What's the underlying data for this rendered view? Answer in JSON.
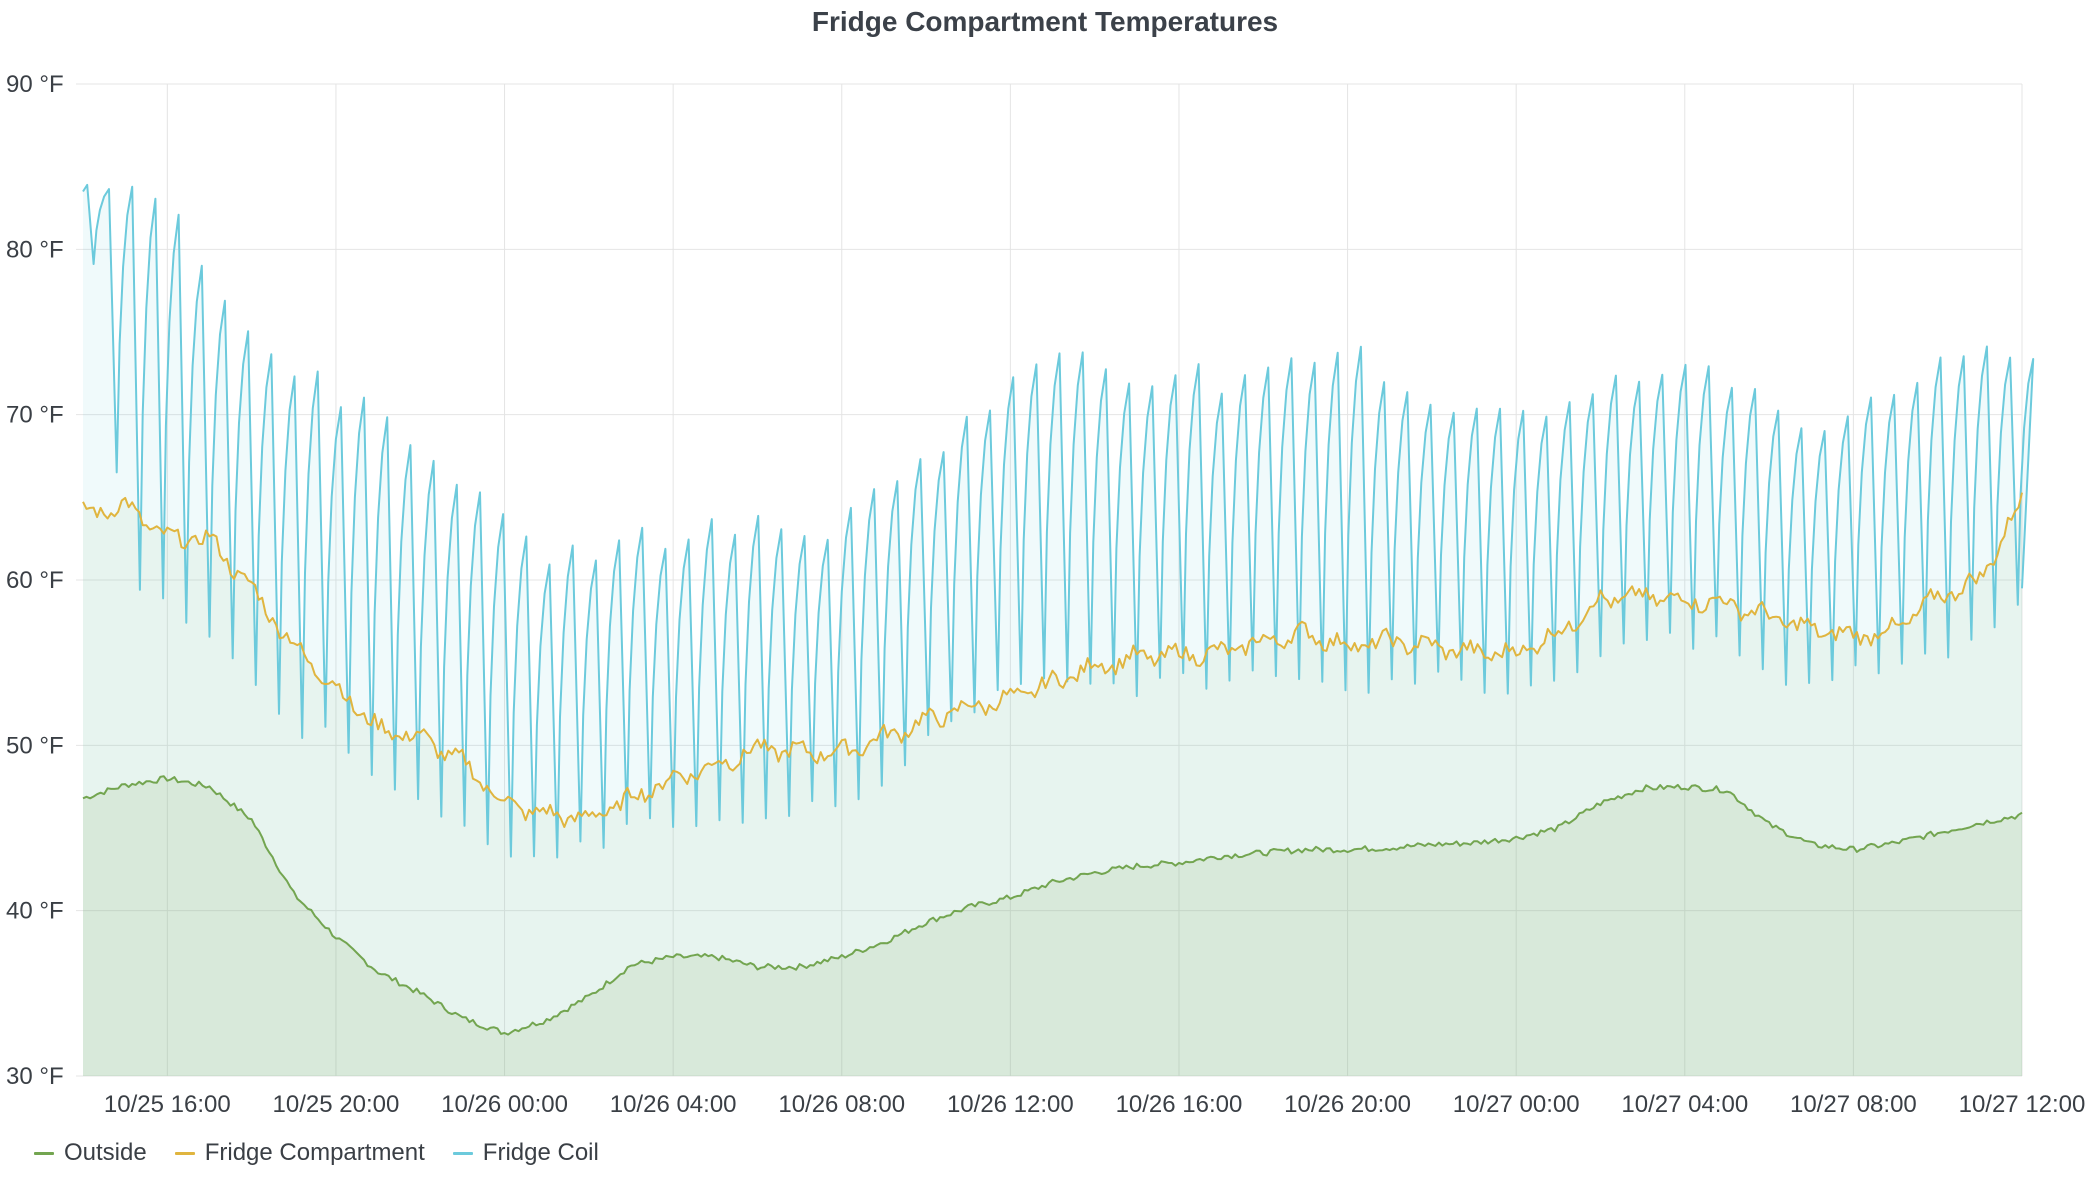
{
  "chart_data": {
    "type": "line",
    "title": "Fridge Compartment Temperatures",
    "x_ticks": [
      "10/25 16:00",
      "10/25 20:00",
      "10/26 00:00",
      "10/26 04:00",
      "10/26 08:00",
      "10/26 12:00",
      "10/26 16:00",
      "10/26 20:00",
      "10/27 00:00",
      "10/27 04:00",
      "10/27 08:00",
      "10/27 12:00"
    ],
    "y_ticks": [
      "30 °F",
      "40 °F",
      "50 °F",
      "60 °F",
      "70 °F",
      "80 °F",
      "90 °F"
    ],
    "xlim": [
      "10/25 13:50",
      "10/27 12:00"
    ],
    "ylim": [
      30,
      90
    ],
    "ylabel": "",
    "xlabel": "",
    "grid": true,
    "legend_position": "bottom-left",
    "series": [
      {
        "name": "Outside",
        "color": "#73a550",
        "fill": true,
        "x": [
          "10/25 14:00",
          "10/25 15:00",
          "10/25 16:00",
          "10/25 17:00",
          "10/25 18:00",
          "10/25 19:00",
          "10/25 20:00",
          "10/25 21:00",
          "10/25 22:00",
          "10/25 23:00",
          "10/26 00:00",
          "10/26 01:00",
          "10/26 02:00",
          "10/26 03:00",
          "10/26 04:00",
          "10/26 05:00",
          "10/26 06:00",
          "10/26 07:00",
          "10/26 08:00",
          "10/26 09:00",
          "10/26 10:00",
          "10/26 11:00",
          "10/26 12:00",
          "10/26 13:00",
          "10/26 14:00",
          "10/26 15:00",
          "10/26 16:00",
          "10/26 17:00",
          "10/26 18:00",
          "10/26 19:00",
          "10/26 20:00",
          "10/26 21:00",
          "10/26 22:00",
          "10/26 23:00",
          "10/27 00:00",
          "10/27 01:00",
          "10/27 02:00",
          "10/27 03:00",
          "10/27 04:00",
          "10/27 05:00",
          "10/27 06:00",
          "10/27 07:00",
          "10/27 08:00",
          "10/27 09:00",
          "10/27 10:00",
          "10/27 11:00",
          "10/27 12:00"
        ],
        "values": [
          46.8,
          47.6,
          48.0,
          47.5,
          45.5,
          41.0,
          38.4,
          36.3,
          35.0,
          33.5,
          32.6,
          33.4,
          34.8,
          36.7,
          37.2,
          37.2,
          36.6,
          36.6,
          37.2,
          38.1,
          39.3,
          40.2,
          40.8,
          41.7,
          42.3,
          42.7,
          42.9,
          43.3,
          43.5,
          43.7,
          43.7,
          43.8,
          44.0,
          44.1,
          44.4,
          45.0,
          46.5,
          47.4,
          47.5,
          47.3,
          45.2,
          44.0,
          43.7,
          44.1,
          44.7,
          45.3,
          45.8
        ]
      },
      {
        "name": "Fridge Compartment",
        "color": "#e0b53f",
        "fill": true,
        "x": [
          "10/25 14:00",
          "10/25 15:00",
          "10/25 16:00",
          "10/25 17:00",
          "10/25 18:00",
          "10/25 19:00",
          "10/25 20:00",
          "10/25 21:00",
          "10/25 22:00",
          "10/25 23:00",
          "10/26 00:00",
          "10/26 01:00",
          "10/26 02:00",
          "10/26 03:00",
          "10/26 04:00",
          "10/26 05:00",
          "10/26 06:00",
          "10/26 07:00",
          "10/26 08:00",
          "10/26 09:00",
          "10/26 10:00",
          "10/26 11:00",
          "10/26 12:00",
          "10/26 13:00",
          "10/26 14:00",
          "10/26 15:00",
          "10/26 16:00",
          "10/26 17:00",
          "10/26 18:00",
          "10/26 19:00",
          "10/26 20:00",
          "10/26 21:00",
          "10/26 22:00",
          "10/26 23:00",
          "10/27 00:00",
          "10/27 01:00",
          "10/27 02:00",
          "10/27 03:00",
          "10/27 04:00",
          "10/27 05:00",
          "10/27 06:00",
          "10/27 07:00",
          "10/27 08:00",
          "10/27 09:00",
          "10/27 10:00",
          "10/27 11:00",
          "10/27 12:00"
        ],
        "values": [
          64.0,
          64.5,
          62.5,
          62.5,
          59.5,
          56.0,
          53.5,
          51.0,
          50.5,
          49.0,
          46.5,
          45.8,
          45.6,
          46.8,
          48.0,
          48.8,
          49.8,
          49.6,
          49.6,
          50.5,
          51.5,
          52.3,
          52.8,
          53.8,
          54.8,
          55.3,
          55.5,
          55.6,
          56.3,
          56.8,
          56.0,
          56.3,
          56.0,
          55.6,
          55.6,
          56.8,
          58.8,
          59.0,
          58.8,
          58.6,
          57.8,
          57.0,
          56.6,
          57.0,
          59.0,
          60.0,
          64.8
        ]
      },
      {
        "name": "Fridge Coil",
        "color": "#6ccadc",
        "fill": true,
        "x": [
          "10/25 14:00",
          "10/25 15:00",
          "10/25 16:00",
          "10/25 17:00",
          "10/25 18:00",
          "10/25 19:00",
          "10/25 20:00",
          "10/25 21:00",
          "10/25 22:00",
          "10/25 23:00",
          "10/26 00:00",
          "10/26 01:00",
          "10/26 02:00",
          "10/26 03:00",
          "10/26 04:00",
          "10/26 05:00",
          "10/26 06:00",
          "10/26 07:00",
          "10/26 08:00",
          "10/26 09:00",
          "10/26 10:00",
          "10/26 11:00",
          "10/26 12:00",
          "10/26 13:00",
          "10/26 14:00",
          "10/26 15:00",
          "10/26 16:00",
          "10/26 17:00",
          "10/26 18:00",
          "10/26 19:00",
          "10/26 20:00",
          "10/26 21:00",
          "10/26 22:00",
          "10/26 23:00",
          "10/27 00:00",
          "10/27 01:00",
          "10/27 02:00",
          "10/27 03:00",
          "10/27 04:00",
          "10/27 05:00",
          "10/27 06:00",
          "10/27 07:00",
          "10/27 08:00",
          "10/27 09:00",
          "10/27 10:00",
          "10/27 11:00",
          "10/27 12:00"
        ],
        "peaks": [
          83.5,
          85.0,
          80.5,
          77.0,
          73.5,
          72.5,
          70.5,
          69.5,
          67.5,
          64.5,
          62.0,
          61.5,
          62.0,
          62.5,
          63.0,
          63.5,
          63.0,
          62.5,
          64.5,
          66.5,
          68.5,
          70.5,
          72.5,
          74.5,
          72.5,
          72.5,
          72.5,
          71.5,
          72.5,
          73.5,
          73.5,
          71.5,
          70.5,
          70.5,
          70.5,
          70.5,
          72.0,
          72.5,
          72.5,
          72.0,
          70.0,
          69.5,
          71.0,
          72.5,
          73.0,
          73.5,
          73.5
        ],
        "troughs": [
          83.0,
          60.5,
          58.5,
          56.5,
          53.5,
          51.0,
          50.5,
          48.0,
          47.0,
          44.5,
          43.0,
          43.5,
          44.0,
          45.0,
          45.5,
          45.8,
          46.0,
          46.0,
          46.5,
          48.0,
          50.5,
          52.5,
          53.5,
          53.5,
          54.0,
          53.5,
          54.0,
          54.0,
          55.0,
          54.0,
          53.5,
          54.0,
          54.0,
          53.5,
          53.5,
          54.0,
          56.0,
          56.5,
          56.0,
          56.0,
          54.0,
          53.5,
          54.5,
          55.0,
          55.5,
          56.5,
          59.5
        ]
      }
    ]
  }
}
